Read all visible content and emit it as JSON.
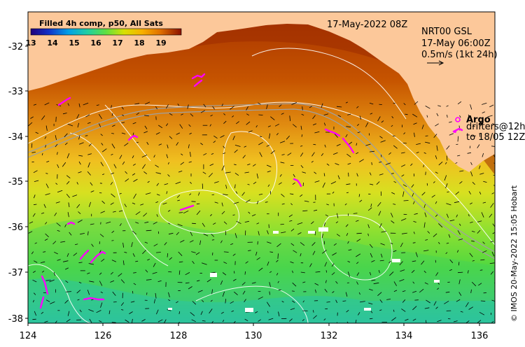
{
  "colorbar": {
    "title": "Filled 4h comp, p50, All Sats",
    "ticks": [
      "13",
      "14",
      "15",
      "16",
      "17",
      "18",
      "19"
    ],
    "colors": [
      "#20007a",
      "#1030c8",
      "#00a0e8",
      "#20d0a0",
      "#60e040",
      "#d8e000",
      "#f8b000",
      "#e07000",
      "#b83000",
      "#8a1000"
    ]
  },
  "timestamp": "17-May-2022 08Z",
  "currents": {
    "line1": "NRT00 GSL",
    "line2": "17-May 06:00Z",
    "line3": "0.5m/s (1kt 24h)"
  },
  "legend": {
    "argo_label": "Argo",
    "drifters_line1": "drifters@12h",
    "drifters_line2": "to 18/05 12Z",
    "argo_color": "#ff00ff"
  },
  "axes": {
    "x_ticks": [
      "124",
      "126",
      "128",
      "130",
      "132",
      "134",
      "136"
    ],
    "y_ticks": [
      "-32",
      "-33",
      "-34",
      "-35",
      "-36",
      "-37",
      "-38"
    ]
  },
  "copyright": "© IMOS 20-May-2022 15:05 Hobart",
  "land_color": "#fcc89a"
}
